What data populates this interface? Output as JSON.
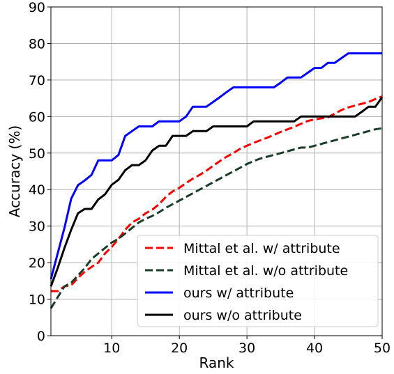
{
  "chart_data": {
    "type": "line",
    "title": "",
    "xlabel": "Rank",
    "ylabel": "Accuracy (%)",
    "xlim": [
      1,
      50
    ],
    "ylim": [
      0,
      90
    ],
    "xticks": [
      10,
      20,
      30,
      40,
      50
    ],
    "yticks": [
      0,
      10,
      20,
      30,
      40,
      50,
      60,
      70,
      80,
      90
    ],
    "grid": true,
    "legend_position": "bottom-right",
    "x": [
      1,
      2,
      3,
      4,
      5,
      6,
      7,
      8,
      9,
      10,
      11,
      12,
      13,
      14,
      15,
      16,
      17,
      18,
      19,
      20,
      21,
      22,
      23,
      24,
      25,
      26,
      27,
      28,
      29,
      30,
      31,
      32,
      33,
      34,
      35,
      36,
      37,
      38,
      39,
      40,
      41,
      42,
      43,
      44,
      45,
      46,
      47,
      48,
      49,
      50
    ],
    "series": [
      {
        "name": "Mittal et al. w/ attribute",
        "color": "#ff0000",
        "dash": "dashed",
        "values": [
          12.2,
          12.2,
          13.5,
          13.8,
          15.8,
          17.5,
          18.8,
          20.0,
          22.5,
          24.3,
          26.5,
          29.0,
          31.0,
          32.0,
          33.5,
          34.5,
          36.0,
          38.0,
          39.5,
          40.5,
          41.8,
          43.0,
          44.0,
          45.2,
          46.5,
          47.8,
          49.0,
          50.0,
          51.2,
          52.0,
          52.8,
          53.5,
          54.2,
          55.0,
          55.8,
          56.5,
          57.2,
          58.0,
          58.8,
          59.2,
          59.5,
          59.8,
          60.8,
          61.8,
          62.5,
          63.0,
          63.5,
          64.0,
          64.8,
          65.5
        ]
      },
      {
        "name": "Mittal et al. w/o attribute",
        "color": "#1a3d2a",
        "dash": "dashed",
        "values": [
          7.5,
          10.5,
          13.5,
          14.5,
          16.5,
          18.5,
          21.0,
          22.5,
          24.0,
          25.5,
          26.5,
          28.0,
          29.5,
          31.0,
          32.0,
          32.8,
          33.8,
          35.0,
          36.0,
          37.0,
          38.0,
          39.0,
          40.0,
          41.0,
          42.0,
          43.0,
          44.0,
          45.0,
          46.0,
          47.0,
          47.8,
          48.5,
          49.0,
          49.5,
          50.0,
          50.5,
          51.0,
          51.5,
          51.5,
          52.0,
          52.5,
          53.0,
          53.5,
          54.0,
          54.5,
          55.0,
          55.5,
          56.0,
          56.5,
          56.8
        ]
      },
      {
        "name": "ours w/ attribute",
        "color": "#0000ff",
        "dash": "solid",
        "values": [
          15.5,
          22.5,
          29.5,
          37.5,
          41.2,
          42.5,
          44.0,
          48.0,
          48.0,
          48.0,
          49.5,
          54.7,
          56.0,
          57.3,
          57.3,
          57.3,
          58.7,
          58.7,
          58.7,
          58.7,
          60.0,
          62.7,
          62.7,
          62.7,
          64.0,
          65.3,
          66.7,
          68.0,
          68.0,
          68.0,
          68.0,
          68.0,
          68.0,
          68.0,
          69.3,
          70.7,
          70.7,
          70.7,
          72.0,
          73.3,
          73.3,
          74.7,
          74.7,
          76.0,
          77.3,
          77.3,
          77.3,
          77.3,
          77.3,
          77.3
        ]
      },
      {
        "name": "ours w/o attribute",
        "color": "#000000",
        "dash": "solid",
        "values": [
          13.5,
          18.5,
          24.0,
          29.0,
          33.5,
          34.7,
          34.7,
          37.3,
          38.7,
          41.3,
          42.7,
          45.3,
          46.7,
          46.7,
          48.0,
          50.7,
          52.0,
          52.0,
          54.7,
          54.7,
          54.7,
          56.0,
          56.0,
          56.0,
          57.3,
          57.3,
          57.3,
          57.3,
          57.3,
          57.3,
          58.7,
          58.7,
          58.7,
          58.7,
          58.7,
          58.7,
          58.7,
          60.0,
          60.0,
          60.0,
          60.0,
          60.0,
          60.0,
          60.0,
          60.0,
          60.0,
          61.3,
          62.7,
          62.7,
          65.3
        ]
      }
    ]
  }
}
